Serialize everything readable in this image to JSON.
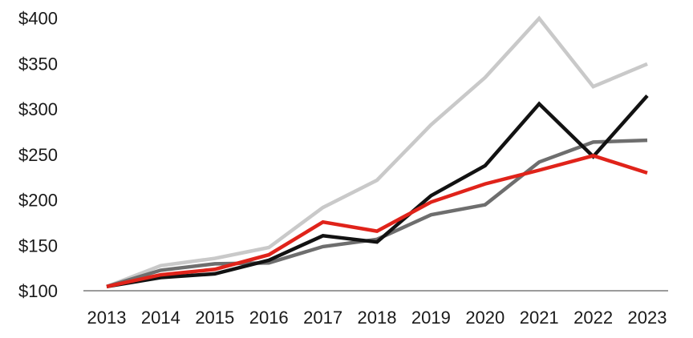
{
  "chart_data": {
    "type": "line",
    "title": "",
    "categories": [
      "2013",
      "2014",
      "2015",
      "2016",
      "2017",
      "2018",
      "2019",
      "2020",
      "2021",
      "2022",
      "2023"
    ],
    "y_ticks": [
      {
        "value": 100,
        "label": "$100"
      },
      {
        "value": 150,
        "label": "$150"
      },
      {
        "value": 200,
        "label": "$200"
      },
      {
        "value": 250,
        "label": "$250"
      },
      {
        "value": 300,
        "label": "$300"
      },
      {
        "value": 350,
        "label": "$350"
      },
      {
        "value": 400,
        "label": "$400"
      }
    ],
    "ylim": [
      100,
      400
    ],
    "grid": false,
    "legend": "none",
    "series": [
      {
        "name": "light-gray",
        "color": "#c9c9c9",
        "values": [
          105,
          128,
          136,
          148,
          192,
          222,
          283,
          335,
          400,
          325,
          350
        ]
      },
      {
        "name": "dark-gray",
        "color": "#6e6e6e",
        "values": [
          105,
          123,
          130,
          131,
          149,
          157,
          184,
          195,
          242,
          264,
          266
        ]
      },
      {
        "name": "black",
        "color": "#121212",
        "values": [
          105,
          115,
          119,
          134,
          161,
          154,
          205,
          238,
          306,
          248,
          315
        ]
      },
      {
        "name": "red",
        "color": "#e0231a",
        "values": [
          105,
          118,
          124,
          140,
          176,
          166,
          198,
          218,
          233,
          249,
          230
        ]
      }
    ],
    "axis": {
      "baseline_color": "#9b9b9b",
      "tick_label_color": "#1a1a1a"
    }
  }
}
